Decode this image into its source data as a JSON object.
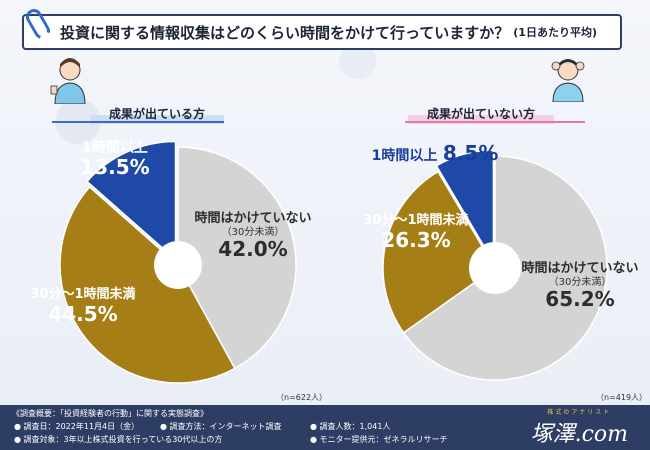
{
  "title": {
    "main": "投資に関する情報収集はどのくらい時間をかけて行っていますか？",
    "sub": "(1日あたり平均)"
  },
  "chart_data": [
    {
      "type": "pie",
      "title": "成果が出ている方",
      "n_note": "（n=622人）",
      "slices": [
        {
          "name": "時間はかけていない",
          "sub": "（30分未満）",
          "value": 42.0,
          "label": "42.0%",
          "color": "#d4d4d4"
        },
        {
          "name": "30分〜1時間未満",
          "value": 44.5,
          "label": "44.5%",
          "color": "#a57f16"
        },
        {
          "name": "1時間以上",
          "value": 13.5,
          "label": "13.5%",
          "color": "#1f49a6"
        }
      ]
    },
    {
      "type": "pie",
      "title": "成果が出ていない方",
      "n_note": "（n=419人）",
      "slices": [
        {
          "name": "時間はかけていない",
          "sub": "（30分未満）",
          "value": 65.2,
          "label": "65.2%",
          "color": "#d4d4d4"
        },
        {
          "name": "30分〜1時間未満",
          "value": 26.3,
          "label": "26.3%",
          "color": "#a57f16"
        },
        {
          "name": "1時間以上",
          "value": 8.5,
          "label": "8.5%",
          "color": "#1f49a6"
        }
      ]
    }
  ],
  "footer": {
    "title": "《調査概要：「投資経験者の行動」に関する実態調査》",
    "date": "● 調査日：2022年11月4日（金）",
    "method": "● 調査方法：インターネット調査",
    "count": "● 調査人数：1,041人",
    "target": "● 調査対象：3年以上株式投資を行っている30代以上の方",
    "monitor": "● モニター提供元：ゼネラルリサーチ",
    "brand_top": "株式のアナリスト",
    "brand_name": "塚澤.com"
  }
}
